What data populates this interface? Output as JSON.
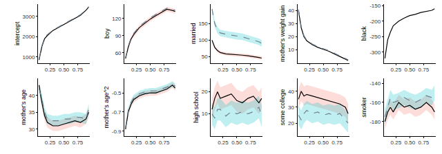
{
  "chart_data": [
    {
      "type": "line",
      "y_label": "intercept",
      "grid": false,
      "x": [
        0.05,
        0.1,
        0.15,
        0.2,
        0.3,
        0.4,
        0.5,
        0.6,
        0.7,
        0.8,
        0.9,
        0.95
      ],
      "xlim": [
        0.03,
        0.97
      ],
      "xticks": [
        0.25,
        {
          "value": 0.5,
          "label": "0.50"
        },
        0.75
      ],
      "ylim": [
        700,
        3600
      ],
      "yticks": [
        1000,
        2000,
        3000
      ],
      "series": [
        {
          "color": "#000000",
          "line_style": "solid",
          "values": [
            850,
            1500,
            1900,
            2050,
            2300,
            2450,
            2600,
            2750,
            2900,
            3050,
            3300,
            3450
          ]
        },
        {
          "color": "#708090",
          "line_style": "dash",
          "values": [
            900,
            1550,
            1950,
            2100,
            2320,
            2470,
            2620,
            2760,
            2920,
            3080,
            3320,
            3480
          ]
        }
      ]
    },
    {
      "type": "line",
      "y_label": "boy",
      "grid": false,
      "x": [
        0.05,
        0.1,
        0.15,
        0.2,
        0.3,
        0.4,
        0.5,
        0.6,
        0.7,
        0.8,
        0.9,
        0.95
      ],
      "xlim": [
        0.03,
        0.97
      ],
      "xticks": [
        0.25,
        {
          "value": 0.5,
          "label": "0.50"
        },
        0.75
      ],
      "ylim": [
        42,
        145
      ],
      "yticks": [
        60,
        90,
        120
      ],
      "series": [
        {
          "color": "#000000",
          "line_style": "solid",
          "values": [
            50,
            70,
            84,
            92,
            104,
            112,
            119,
            125,
            131,
            136,
            134,
            132
          ],
          "lower": [
            46,
            66,
            80,
            88,
            100,
            108,
            115,
            121,
            127,
            132,
            130,
            128
          ],
          "upper": [
            54,
            74,
            88,
            96,
            108,
            116,
            123,
            129,
            135,
            140,
            138,
            136
          ]
        },
        {
          "color": "#708090",
          "line_style": "dash",
          "values": [
            52,
            72,
            86,
            94,
            106,
            114,
            121,
            127,
            133,
            138,
            136,
            134
          ]
        }
      ]
    },
    {
      "type": "line",
      "y_label": "married",
      "grid": false,
      "x": [
        0.05,
        0.1,
        0.15,
        0.2,
        0.3,
        0.4,
        0.5,
        0.6,
        0.7,
        0.8,
        0.9,
        0.95
      ],
      "xlim": [
        0.03,
        0.97
      ],
      "xticks": [
        0.25,
        {
          "value": 0.5,
          "label": "0.50"
        },
        0.75
      ],
      "ylim": [
        30,
        210
      ],
      "yticks": [
        50,
        100,
        150
      ],
      "series": [
        {
          "color": "#000000",
          "line_style": "solid",
          "values": [
            100,
            78,
            68,
            62,
            58,
            57,
            55,
            54,
            52,
            50,
            47,
            45
          ],
          "lower": [
            95,
            73,
            63,
            57,
            53,
            52,
            50,
            49,
            47,
            45,
            42,
            40
          ],
          "upper": [
            105,
            83,
            73,
            67,
            63,
            62,
            60,
            59,
            57,
            55,
            52,
            50
          ]
        },
        {
          "color": "#708090",
          "line_style": "dash",
          "values": [
            195,
            150,
            130,
            122,
            118,
            115,
            112,
            110,
            105,
            100,
            95,
            90
          ],
          "lower": [
            185,
            140,
            120,
            112,
            108,
            105,
            102,
            100,
            95,
            90,
            85,
            80
          ],
          "upper": [
            205,
            160,
            140,
            132,
            128,
            125,
            122,
            120,
            115,
            110,
            105,
            100
          ]
        }
      ]
    },
    {
      "type": "line",
      "y_label": "mother's weight gain",
      "grid": false,
      "x": [
        0.05,
        0.1,
        0.15,
        0.2,
        0.3,
        0.4,
        0.5,
        0.6,
        0.7,
        0.8,
        0.9,
        0.95
      ],
      "xlim": [
        0.03,
        0.97
      ],
      "xticks": [
        0.25,
        {
          "value": 0.5,
          "label": "0.50"
        },
        0.75
      ],
      "ylim": [
        0,
        45
      ],
      "yticks": [
        10,
        20,
        30,
        40
      ],
      "series": [
        {
          "color": "#000000",
          "line_style": "solid",
          "values": [
            40,
            27,
            20,
            17,
            14,
            12,
            10.5,
            9,
            7,
            5,
            3,
            2
          ]
        },
        {
          "color": "#708090",
          "line_style": "dash",
          "values": [
            41,
            28,
            21,
            17.5,
            14.5,
            12.5,
            11,
            9.5,
            7.5,
            5.5,
            3.5,
            2.5
          ]
        }
      ]
    },
    {
      "type": "line",
      "y_label": "black",
      "grid": false,
      "x": [
        0.05,
        0.1,
        0.15,
        0.2,
        0.3,
        0.4,
        0.5,
        0.6,
        0.7,
        0.8,
        0.9,
        0.95
      ],
      "xlim": [
        0.03,
        0.97
      ],
      "xticks": [
        0.25,
        {
          "value": 0.5,
          "label": "0.50"
        },
        0.75
      ],
      "ylim": [
        -335,
        -145
      ],
      "yticks": [
        -300,
        -250,
        -200,
        -150
      ],
      "series": [
        {
          "color": "#000000",
          "line_style": "solid",
          "values": [
            -320,
            -260,
            -235,
            -215,
            -200,
            -190,
            -182,
            -178,
            -172,
            -168,
            -165,
            -160
          ]
        }
      ]
    },
    {
      "type": "line",
      "y_label": "mother's age",
      "grid": false,
      "x": [
        0.05,
        0.1,
        0.15,
        0.2,
        0.3,
        0.4,
        0.5,
        0.6,
        0.7,
        0.8,
        0.9,
        0.95
      ],
      "xlim": [
        0.03,
        0.97
      ],
      "xticks": [
        0.25,
        {
          "value": 0.5,
          "label": "0.50"
        },
        0.75
      ],
      "ylim": [
        28,
        45
      ],
      "yticks": [
        30,
        35,
        40
      ],
      "series": [
        {
          "color": "#000000",
          "line_style": "solid",
          "values": [
            43,
            38,
            34,
            32,
            31,
            31,
            31.5,
            32,
            32.5,
            32,
            33,
            35
          ],
          "lower": [
            41.5,
            36.5,
            32.5,
            30.5,
            29.5,
            29.5,
            30,
            30.5,
            31,
            30.5,
            31.5,
            33.5
          ],
          "upper": [
            44.5,
            39.5,
            35.5,
            33.5,
            32.5,
            32.5,
            33,
            33.5,
            34,
            33.5,
            34.5,
            36.5
          ]
        },
        {
          "color": "#708090",
          "line_style": "dash",
          "values": [
            42,
            39,
            35,
            33,
            32.5,
            32.5,
            33,
            33,
            33.5,
            33.5,
            33,
            36
          ],
          "lower": [
            40.5,
            37.5,
            33.5,
            31.5,
            31,
            31,
            31.5,
            31.5,
            32,
            32,
            31.5,
            34.5
          ],
          "upper": [
            43.5,
            40.5,
            36.5,
            34.5,
            34,
            34,
            34.5,
            34.5,
            35,
            35,
            34.5,
            37.5
          ]
        }
      ]
    },
    {
      "type": "line",
      "y_label": "mother's age^2",
      "grid": false,
      "x": [
        0.05,
        0.1,
        0.15,
        0.2,
        0.3,
        0.4,
        0.5,
        0.6,
        0.7,
        0.8,
        0.9,
        0.95
      ],
      "xlim": [
        0.03,
        0.97
      ],
      "xticks": [
        0.25,
        {
          "value": 0.5,
          "label": "0.50"
        },
        0.75
      ],
      "ylim": [
        -0.95,
        -0.35
      ],
      "yticks": [
        -0.9,
        -0.7,
        -0.5
      ],
      "series": [
        {
          "color": "#000000",
          "line_style": "solid",
          "values": [
            -0.88,
            -0.7,
            -0.62,
            -0.57,
            -0.53,
            -0.51,
            -0.5,
            -0.5,
            -0.48,
            -0.46,
            -0.42,
            -0.45
          ],
          "lower": [
            -0.91,
            -0.73,
            -0.65,
            -0.6,
            -0.56,
            -0.54,
            -0.53,
            -0.53,
            -0.51,
            -0.49,
            -0.45,
            -0.48
          ],
          "upper": [
            -0.85,
            -0.67,
            -0.59,
            -0.54,
            -0.5,
            -0.48,
            -0.47,
            -0.47,
            -0.45,
            -0.43,
            -0.39,
            -0.42
          ]
        },
        {
          "color": "#708090",
          "line_style": "dash",
          "values": [
            -0.86,
            -0.68,
            -0.6,
            -0.55,
            -0.51,
            -0.49,
            -0.48,
            -0.48,
            -0.46,
            -0.44,
            -0.41,
            -0.43
          ],
          "lower": [
            -0.89,
            -0.71,
            -0.63,
            -0.58,
            -0.54,
            -0.52,
            -0.51,
            -0.51,
            -0.49,
            -0.47,
            -0.44,
            -0.46
          ],
          "upper": [
            -0.83,
            -0.65,
            -0.57,
            -0.52,
            -0.48,
            -0.46,
            -0.45,
            -0.45,
            -0.43,
            -0.41,
            -0.38,
            -0.4
          ]
        }
      ]
    },
    {
      "type": "line",
      "y_label": "high school",
      "grid": false,
      "x": [
        0.05,
        0.1,
        0.15,
        0.2,
        0.3,
        0.4,
        0.5,
        0.6,
        0.7,
        0.8,
        0.9,
        0.95
      ],
      "xlim": [
        0.03,
        0.97
      ],
      "xticks": [
        0.25,
        {
          "value": 0.5,
          "label": "0.50"
        },
        0.75
      ],
      "ylim": [
        0,
        26
      ],
      "yticks": [
        10,
        20
      ],
      "series": [
        {
          "color": "#000000",
          "line_style": "solid",
          "values": [
            12,
            17,
            20,
            17,
            18,
            19,
            16,
            15,
            17,
            18,
            15,
            17
          ],
          "lower": [
            7,
            12,
            15,
            12,
            13,
            14,
            11,
            10,
            12,
            13,
            10,
            12
          ],
          "upper": [
            17,
            22,
            25,
            22,
            23,
            24,
            21,
            20,
            22,
            23,
            20,
            22
          ]
        },
        {
          "color": "#708090",
          "line_style": "dash",
          "values": [
            10,
            8,
            12,
            12,
            9,
            11,
            10,
            11,
            10,
            11,
            13,
            9
          ],
          "lower": [
            5,
            3,
            7,
            7,
            4,
            6,
            5,
            6,
            5,
            6,
            8,
            4
          ],
          "upper": [
            15,
            13,
            17,
            17,
            14,
            16,
            15,
            16,
            15,
            16,
            18,
            14
          ]
        }
      ]
    },
    {
      "type": "line",
      "y_label": "some college",
      "grid": false,
      "x": [
        0.05,
        0.1,
        0.15,
        0.2,
        0.3,
        0.4,
        0.5,
        0.6,
        0.7,
        0.8,
        0.9,
        0.95
      ],
      "xlim": [
        0.03,
        0.97
      ],
      "xticks": [
        0.25,
        {
          "value": 0.5,
          "label": "0.50"
        },
        0.75
      ],
      "ylim": [
        12,
        48
      ],
      "yticks": [
        20,
        30,
        40
      ],
      "series": [
        {
          "color": "#000000",
          "line_style": "solid",
          "values": [
            35,
            40,
            37,
            38,
            37,
            36,
            35,
            34,
            33,
            32,
            30,
            26
          ],
          "lower": [
            29,
            34,
            31,
            32,
            31,
            30,
            29,
            28,
            27,
            26,
            24,
            20
          ],
          "upper": [
            41,
            46,
            43,
            44,
            43,
            42,
            41,
            40,
            39,
            38,
            36,
            32
          ]
        },
        {
          "color": "#708090",
          "line_style": "dash",
          "values": [
            25,
            22,
            26,
            28,
            26,
            27,
            25,
            26,
            25,
            26,
            22,
            20
          ],
          "lower": [
            19,
            16,
            20,
            22,
            20,
            21,
            19,
            20,
            19,
            20,
            16,
            14
          ],
          "upper": [
            31,
            28,
            32,
            34,
            32,
            33,
            31,
            32,
            31,
            32,
            28,
            26
          ]
        }
      ]
    },
    {
      "type": "line",
      "y_label": "smoker",
      "grid": false,
      "x": [
        0.05,
        0.1,
        0.15,
        0.2,
        0.3,
        0.4,
        0.5,
        0.6,
        0.7,
        0.8,
        0.9,
        0.95
      ],
      "xlim": [
        0.03,
        0.97
      ],
      "xticks": [
        0.25,
        {
          "value": 0.5,
          "label": "0.50"
        },
        0.75
      ],
      "ylim": [
        -195,
        -135
      ],
      "yticks": [
        -180,
        -160,
        -140
      ],
      "series": [
        {
          "color": "#000000",
          "line_style": "solid",
          "values": [
            -180,
            -170,
            -165,
            -170,
            -160,
            -165,
            -163,
            -167,
            -165,
            -160,
            -165,
            -170
          ],
          "lower": [
            -188,
            -178,
            -173,
            -178,
            -168,
            -173,
            -171,
            -175,
            -173,
            -168,
            -173,
            -178
          ],
          "upper": [
            -172,
            -162,
            -157,
            -162,
            -152,
            -157,
            -155,
            -159,
            -157,
            -152,
            -157,
            -162
          ]
        },
        {
          "color": "#708090",
          "line_style": "dash",
          "values": [
            -175,
            -165,
            -155,
            -160,
            -158,
            -155,
            -158,
            -160,
            -157,
            -153,
            -155,
            -150
          ],
          "lower": [
            -183,
            -173,
            -163,
            -168,
            -166,
            -163,
            -166,
            -168,
            -165,
            -161,
            -163,
            -158
          ],
          "upper": [
            -167,
            -157,
            -147,
            -152,
            -150,
            -147,
            -150,
            -152,
            -149,
            -145,
            -147,
            -142
          ]
        }
      ]
    }
  ]
}
